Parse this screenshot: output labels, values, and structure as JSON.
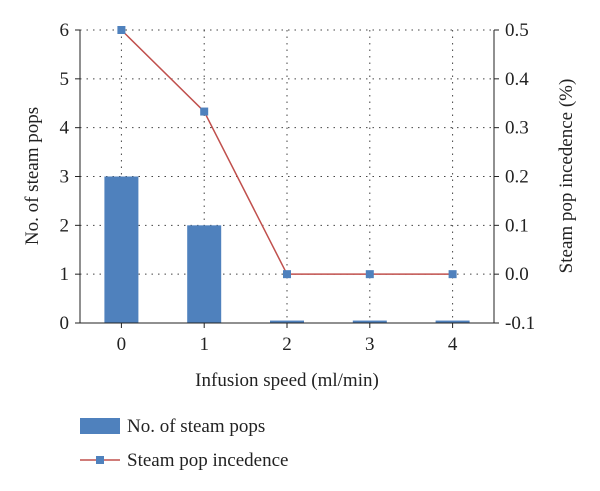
{
  "chart_data": {
    "type": "bar+line",
    "categories": [
      "0",
      "1",
      "2",
      "3",
      "4"
    ],
    "xlabel": "Infusion speed (ml/min)",
    "ylabel_left": "No. of steam pops",
    "ylabel_right": "Steam pop incedence (%)",
    "ylim_left": [
      0,
      6
    ],
    "yticks_left": [
      "0",
      "1",
      "2",
      "3",
      "4",
      "5",
      "6"
    ],
    "ylim_right": [
      -0.1,
      0.5
    ],
    "yticks_right": [
      "-0.1",
      "0.0",
      "0.1",
      "0.2",
      "0.3",
      "0.4",
      "0.5"
    ],
    "grid": "dotted vertical and horizontal",
    "legend_position": "bottom-left",
    "series": [
      {
        "name": "No. of steam pops",
        "kind": "bar",
        "axis": "left",
        "color": "#4f81bd",
        "values": [
          3,
          2,
          0.05,
          0.05,
          0.05
        ]
      },
      {
        "name": "Steam pop incedence",
        "kind": "line",
        "axis": "right",
        "line_color": "#c0504d",
        "marker_color": "#4f81bd",
        "values": [
          0.5,
          0.333,
          0.0,
          0.0,
          0.0
        ]
      }
    ]
  }
}
